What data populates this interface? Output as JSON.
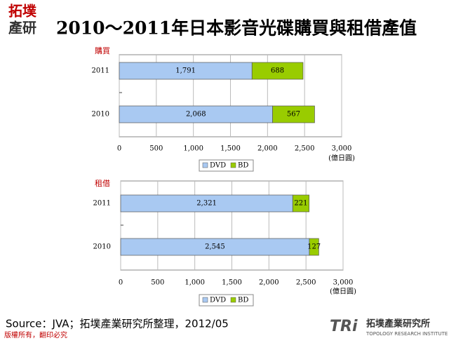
{
  "header": {
    "logo_top": "拓墣",
    "logo_bottom": "產研",
    "title": "2010～2011年日本影音光碟購買與租借產值"
  },
  "chart_data": [
    {
      "type": "bar",
      "orientation": "horizontal",
      "stacked": true,
      "label": "購買",
      "unit": "(億日圓)",
      "categories": [
        "2011",
        "2010"
      ],
      "series": [
        {
          "name": "DVD",
          "color": "#a9c9f2",
          "values": [
            1791,
            2068
          ],
          "value_labels": [
            "1,791",
            "2,068"
          ]
        },
        {
          "name": "BD",
          "color": "#99cc00",
          "values": [
            688,
            567
          ]
        }
      ],
      "xlim": [
        0,
        3000
      ],
      "xticks": [
        0,
        500,
        {
          "value": 1000,
          "label": "1,000"
        },
        {
          "value": 1500,
          "label": "1,500"
        },
        {
          "value": 2000,
          "label": "2,000"
        },
        {
          "value": 2500,
          "label": "2,500"
        },
        {
          "value": 3000,
          "label": "3,000"
        }
      ],
      "grid": true,
      "legend": "bottom"
    },
    {
      "type": "bar",
      "orientation": "horizontal",
      "stacked": true,
      "label": "租借",
      "unit": "(億日圓)",
      "categories": [
        "2011",
        "2010"
      ],
      "series": [
        {
          "name": "DVD",
          "color": "#a9c9f2",
          "values": [
            2321,
            2545
          ],
          "value_labels": [
            "2,321",
            "2,545"
          ]
        },
        {
          "name": "BD",
          "color": "#99cc00",
          "values": [
            221,
            127
          ]
        }
      ],
      "xlim": [
        0,
        3000
      ],
      "xticks": [
        0,
        500,
        {
          "value": 1000,
          "label": "1,000"
        },
        {
          "value": 1500,
          "label": "1,500"
        },
        {
          "value": 2000,
          "label": "2,000"
        },
        {
          "value": 2500,
          "label": "2,500"
        },
        {
          "value": 3000,
          "label": "3,000"
        }
      ],
      "grid": true,
      "legend": "bottom"
    }
  ],
  "footer": {
    "source": "Source：JVA；拓墣產業研究所整理，2012/05",
    "copyright": "版權所有，翻印必究",
    "logo_mark": "TRi",
    "logo_name": "拓墣產業研究所",
    "logo_english": "TOPOLOGY RESEARCH INSTITUTE"
  }
}
